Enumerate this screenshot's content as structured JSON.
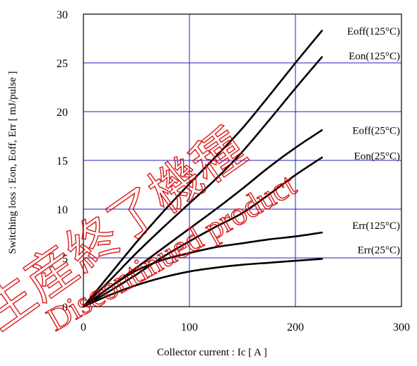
{
  "colors": {
    "grid": "#2020c0",
    "frame": "#000000",
    "series": "#000000",
    "watermark": "#d60000"
  },
  "watermark": {
    "text_1": "生産終了機種",
    "text_2": "Discontinued product"
  },
  "chart_data": {
    "type": "line",
    "title": "",
    "xlabel": "Collector current : Ic [ A ]",
    "ylabel": "Switching loss : Eon, Eoff, Err [ mJ/pulse ]",
    "xlim": [
      0,
      300
    ],
    "ylim": [
      0,
      30
    ],
    "xticks": [
      0,
      100,
      200,
      300
    ],
    "yticks": [
      0,
      5,
      10,
      15,
      20,
      25,
      30
    ],
    "x_tick_labels": [
      "0",
      "100",
      "200",
      "300"
    ],
    "y_tick_labels": [
      "0",
      "5",
      "10",
      "15",
      "20",
      "25",
      "30"
    ],
    "grid": true,
    "series": [
      {
        "name": "Eoff(125°C)",
        "points": [
          [
            0,
            0
          ],
          [
            25,
            3.3
          ],
          [
            50,
            6.6
          ],
          [
            75,
            9.7
          ],
          [
            100,
            12.6
          ],
          [
            125,
            15.4
          ],
          [
            150,
            18.3
          ],
          [
            175,
            21.6
          ],
          [
            200,
            25
          ],
          [
            225,
            28.3
          ]
        ]
      },
      {
        "name": "Eon(125°C)",
        "points": [
          [
            0,
            0
          ],
          [
            25,
            2.7
          ],
          [
            50,
            5.5
          ],
          [
            75,
            8.1
          ],
          [
            100,
            10.6
          ],
          [
            125,
            13.1
          ],
          [
            150,
            15.9
          ],
          [
            175,
            19.1
          ],
          [
            200,
            22.4
          ],
          [
            225,
            25.6
          ]
        ]
      },
      {
        "name": "Eoff(25°C)",
        "points": [
          [
            0,
            0
          ],
          [
            25,
            2
          ],
          [
            50,
            4
          ],
          [
            75,
            6
          ],
          [
            100,
            8
          ],
          [
            125,
            10
          ],
          [
            150,
            12.1
          ],
          [
            175,
            14.3
          ],
          [
            200,
            16.3
          ],
          [
            225,
            18.1
          ]
        ]
      },
      {
        "name": "Eon(25°C)",
        "points": [
          [
            0,
            0
          ],
          [
            25,
            1.6
          ],
          [
            50,
            3.3
          ],
          [
            75,
            5.1
          ],
          [
            100,
            6.7
          ],
          [
            125,
            8.2
          ],
          [
            150,
            9.6
          ],
          [
            175,
            11.5
          ],
          [
            200,
            13.5
          ],
          [
            225,
            15.3
          ]
        ]
      },
      {
        "name": "Err(125°C)",
        "points": [
          [
            0,
            0
          ],
          [
            25,
            2
          ],
          [
            50,
            3.7
          ],
          [
            75,
            4.8
          ],
          [
            100,
            5.5
          ],
          [
            125,
            6.1
          ],
          [
            150,
            6.5
          ],
          [
            175,
            6.9
          ],
          [
            200,
            7.2
          ],
          [
            225,
            7.6
          ]
        ]
      },
      {
        "name": "Err(25°C)",
        "points": [
          [
            0,
            0
          ],
          [
            25,
            1.2
          ],
          [
            50,
            2.2
          ],
          [
            75,
            3
          ],
          [
            100,
            3.6
          ],
          [
            125,
            4
          ],
          [
            150,
            4.3
          ],
          [
            175,
            4.5
          ],
          [
            200,
            4.7
          ],
          [
            225,
            4.9
          ]
        ]
      }
    ]
  }
}
